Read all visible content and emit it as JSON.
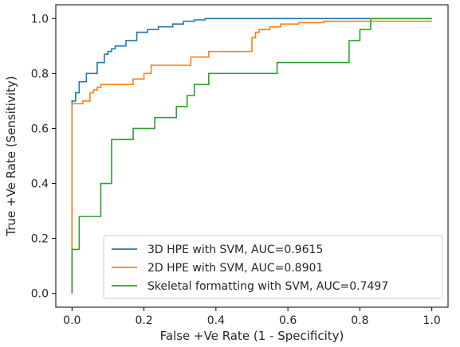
{
  "chart_data": {
    "type": "line",
    "title": "",
    "xlabel": "False +Ve Rate (1 - Specificity)",
    "ylabel": "True +Ve Rate (Sensitivity)",
    "xlim": [
      -0.045,
      1.045
    ],
    "ylim": [
      -0.05,
      1.05
    ],
    "xticks": [
      0.0,
      0.2,
      0.4,
      0.6,
      0.8,
      1.0
    ],
    "yticks": [
      0.0,
      0.2,
      0.4,
      0.6,
      0.8,
      1.0
    ],
    "xtick_labels": [
      "0.0",
      "0.2",
      "0.4",
      "0.6",
      "0.8",
      "1.0"
    ],
    "ytick_labels": [
      "0.0",
      "0.2",
      "0.4",
      "0.6",
      "0.8",
      "1.0"
    ],
    "grid": false,
    "legend_position": "lower-right",
    "step_plot": true,
    "series": [
      {
        "name": "3D HPE with SVM, AUC=0.9615",
        "color": "#1f77b4",
        "x": [
          0.0,
          0.0,
          0.01,
          0.01,
          0.02,
          0.02,
          0.04,
          0.04,
          0.07,
          0.07,
          0.09,
          0.09,
          0.1,
          0.1,
          0.11,
          0.11,
          0.12,
          0.12,
          0.15,
          0.15,
          0.18,
          0.18,
          0.21,
          0.21,
          0.24,
          0.24,
          0.28,
          0.28,
          0.31,
          0.31,
          0.34,
          0.34,
          0.37,
          0.37,
          1.0
        ],
        "y": [
          0.0,
          0.7,
          0.7,
          0.73,
          0.73,
          0.77,
          0.77,
          0.8,
          0.8,
          0.84,
          0.84,
          0.87,
          0.87,
          0.88,
          0.88,
          0.89,
          0.89,
          0.9,
          0.9,
          0.92,
          0.92,
          0.95,
          0.95,
          0.96,
          0.96,
          0.97,
          0.97,
          0.98,
          0.98,
          0.99,
          0.99,
          0.995,
          0.995,
          1.0,
          1.0
        ]
      },
      {
        "name": "2D HPE with SVM, AUC=0.8901",
        "color": "#ff7f0e",
        "x": [
          0.0,
          0.0,
          0.03,
          0.03,
          0.05,
          0.05,
          0.06,
          0.06,
          0.07,
          0.07,
          0.08,
          0.08,
          0.17,
          0.17,
          0.2,
          0.2,
          0.22,
          0.22,
          0.33,
          0.33,
          0.38,
          0.38,
          0.5,
          0.5,
          0.51,
          0.51,
          0.52,
          0.52,
          0.55,
          0.55,
          0.58,
          0.58,
          0.63,
          0.63,
          0.7,
          0.7,
          0.73,
          0.73,
          1.0
        ],
        "y": [
          0.0,
          0.69,
          0.69,
          0.7,
          0.7,
          0.73,
          0.73,
          0.74,
          0.74,
          0.75,
          0.75,
          0.76,
          0.76,
          0.78,
          0.78,
          0.8,
          0.8,
          0.83,
          0.83,
          0.86,
          0.86,
          0.88,
          0.88,
          0.93,
          0.93,
          0.95,
          0.95,
          0.96,
          0.96,
          0.97,
          0.97,
          0.98,
          0.98,
          0.985,
          0.985,
          0.99,
          0.99,
          0.99,
          0.99
        ]
      },
      {
        "name": "Skeletal formatting with SVM, AUC=0.7497",
        "color": "#2ca02c",
        "x": [
          0.0,
          0.0,
          0.02,
          0.02,
          0.08,
          0.08,
          0.11,
          0.11,
          0.17,
          0.17,
          0.23,
          0.23,
          0.29,
          0.29,
          0.32,
          0.32,
          0.34,
          0.34,
          0.38,
          0.38,
          0.57,
          0.57,
          0.77,
          0.77,
          0.8,
          0.8,
          0.83,
          0.83,
          1.0
        ],
        "y": [
          0.0,
          0.16,
          0.16,
          0.28,
          0.28,
          0.4,
          0.4,
          0.56,
          0.56,
          0.6,
          0.6,
          0.64,
          0.64,
          0.68,
          0.68,
          0.72,
          0.72,
          0.76,
          0.76,
          0.8,
          0.8,
          0.84,
          0.84,
          0.92,
          0.92,
          0.96,
          0.96,
          1.0,
          1.0
        ]
      }
    ]
  }
}
